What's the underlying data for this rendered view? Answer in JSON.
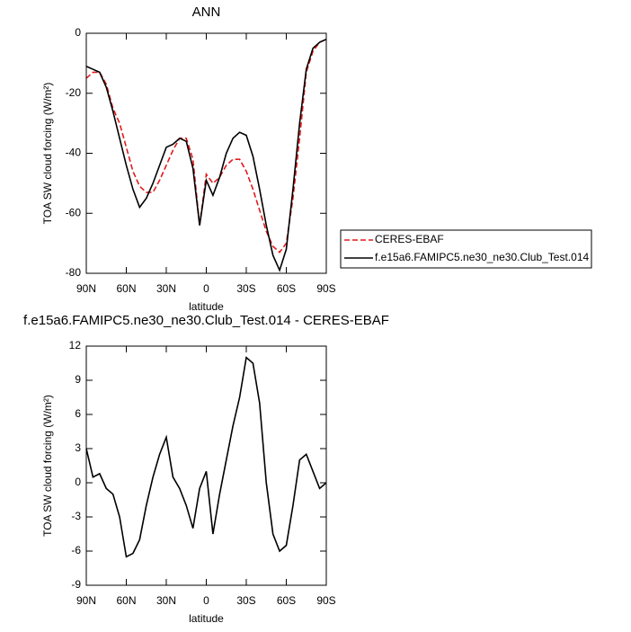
{
  "chart_data": [
    {
      "type": "line",
      "title": "ANN",
      "xlabel": "latitude",
      "ylabel": "TOA SW cloud forcing (W/m²)",
      "x": [
        90,
        85,
        80,
        75,
        70,
        65,
        60,
        55,
        50,
        45,
        40,
        35,
        30,
        25,
        20,
        15,
        10,
        5,
        0,
        -5,
        -10,
        -15,
        -20,
        -25,
        -30,
        -35,
        -40,
        -45,
        -50,
        -55,
        -60,
        -65,
        -70,
        -75,
        -80,
        -85,
        -90
      ],
      "series": [
        {
          "name": "CERES-EBAF",
          "color": "#e41a1c",
          "line_style": "dashed",
          "values": [
            -15,
            -13,
            -13,
            -17,
            -25,
            -30,
            -38,
            -46,
            -51,
            -53,
            -53,
            -49,
            -44,
            -39,
            -35,
            -35,
            -42,
            -64,
            -47,
            -50,
            -48,
            -44,
            -42,
            -42,
            -46,
            -52,
            -59,
            -66,
            -71,
            -73,
            -70,
            -55,
            -35,
            -13,
            -6,
            -3,
            -2
          ]
        },
        {
          "name": "f.e15a6.FAMIPC5.ne30_ne30.Club_Test.014",
          "color": "#000000",
          "line_style": "solid",
          "values": [
            -11,
            -12,
            -13,
            -18,
            -26,
            -35,
            -44,
            -52,
            -58,
            -55,
            -50,
            -44,
            -38,
            -37,
            -35,
            -36,
            -45,
            -64,
            -49,
            -54,
            -48,
            -40,
            -35,
            -33,
            -34,
            -41,
            -52,
            -64,
            -74,
            -79,
            -72,
            -52,
            -30,
            -12,
            -5,
            -3,
            -2
          ]
        }
      ],
      "xlim": [
        90,
        -90
      ],
      "xticks": [
        {
          "value": 90,
          "label": "90N"
        },
        {
          "value": 60,
          "label": "60N"
        },
        {
          "value": 30,
          "label": "30N"
        },
        0,
        {
          "value": -30,
          "label": "30S"
        },
        {
          "value": -60,
          "label": "60S"
        },
        {
          "value": -90,
          "label": "90S"
        }
      ],
      "ylim": [
        -80,
        0
      ],
      "yticks": [
        -80,
        -60,
        -40,
        -20,
        0
      ],
      "legend": "right"
    },
    {
      "type": "line",
      "title": "f.e15a6.FAMIPC5.ne30_ne30.Club_Test.014 - CERES-EBAF",
      "xlabel": "latitude",
      "ylabel": "TOA SW cloud forcing (W/m²)",
      "x": [
        90,
        85,
        80,
        75,
        70,
        65,
        60,
        55,
        50,
        45,
        40,
        35,
        30,
        25,
        20,
        15,
        10,
        5,
        0,
        -5,
        -10,
        -15,
        -20,
        -25,
        -30,
        -35,
        -40,
        -45,
        -50,
        -55,
        -60,
        -65,
        -70,
        -75,
        -80,
        -85,
        -90
      ],
      "color": "#000000",
      "values": [
        3,
        0.5,
        0.8,
        -0.5,
        -1,
        -3,
        -6.5,
        -6.2,
        -5,
        -2,
        0.5,
        2.5,
        4,
        0.5,
        -0.5,
        -2,
        -4,
        -0.5,
        1,
        -4.5,
        -1,
        2,
        5,
        7.5,
        11,
        10.5,
        7,
        0,
        -4.5,
        -6,
        -5.5,
        -2,
        2,
        2.5,
        1,
        -0.5,
        0
      ],
      "xlim": [
        90,
        -90
      ],
      "xticks": [
        {
          "value": 90,
          "label": "90N"
        },
        {
          "value": 60,
          "label": "60N"
        },
        {
          "value": 30,
          "label": "30N"
        },
        0,
        {
          "value": -30,
          "label": "30S"
        },
        {
          "value": -60,
          "label": "60S"
        },
        {
          "value": -90,
          "label": "90S"
        }
      ],
      "ylim": [
        -9,
        12
      ],
      "yticks": [
        -9,
        -6,
        -3,
        0,
        3,
        6,
        9,
        12
      ]
    }
  ]
}
